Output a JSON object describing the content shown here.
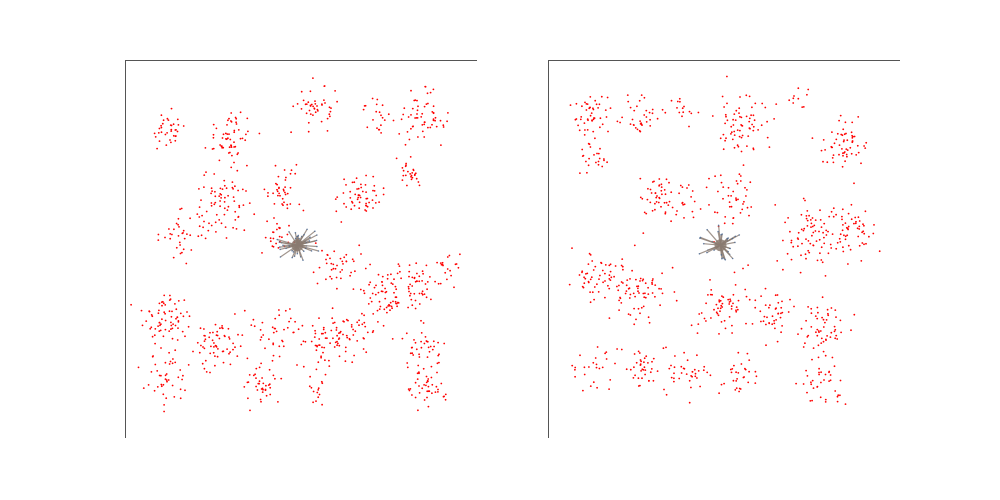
{
  "figure": {
    "background": "#ffffff",
    "point_color": "#ff0000",
    "edge_color": "#8a7a70",
    "center_node_color": "#3a5c8c",
    "axis_color": "#555555"
  },
  "chart_data": [
    {
      "type": "scatter",
      "title": "",
      "xlabel": "",
      "ylabel": "",
      "xlim": [
        0,
        1
      ],
      "ylim": [
        0,
        1
      ],
      "grid": false,
      "ticks": false,
      "visible_spines": [
        "top",
        "left"
      ],
      "hub": {
        "x": 0.49,
        "y": 0.51,
        "edge_count": 40
      },
      "clusters": [
        {
          "x": 0.12,
          "y": 0.81,
          "spread": 0.025,
          "count": 35
        },
        {
          "x": 0.3,
          "y": 0.8,
          "spread": 0.035,
          "count": 60
        },
        {
          "x": 0.55,
          "y": 0.87,
          "spread": 0.03,
          "count": 45
        },
        {
          "x": 0.71,
          "y": 0.87,
          "spread": 0.02,
          "count": 20
        },
        {
          "x": 0.84,
          "y": 0.84,
          "spread": 0.035,
          "count": 60
        },
        {
          "x": 0.81,
          "y": 0.7,
          "spread": 0.02,
          "count": 25
        },
        {
          "x": 0.28,
          "y": 0.61,
          "spread": 0.04,
          "count": 70
        },
        {
          "x": 0.45,
          "y": 0.66,
          "spread": 0.03,
          "count": 40
        },
        {
          "x": 0.67,
          "y": 0.64,
          "spread": 0.03,
          "count": 55
        },
        {
          "x": 0.16,
          "y": 0.54,
          "spread": 0.03,
          "count": 35
        },
        {
          "x": 0.43,
          "y": 0.53,
          "spread": 0.025,
          "count": 25
        },
        {
          "x": 0.6,
          "y": 0.46,
          "spread": 0.03,
          "count": 40
        },
        {
          "x": 0.74,
          "y": 0.38,
          "spread": 0.04,
          "count": 70
        },
        {
          "x": 0.84,
          "y": 0.4,
          "spread": 0.03,
          "count": 40
        },
        {
          "x": 0.91,
          "y": 0.45,
          "spread": 0.025,
          "count": 20
        },
        {
          "x": 0.12,
          "y": 0.32,
          "spread": 0.035,
          "count": 70
        },
        {
          "x": 0.27,
          "y": 0.25,
          "spread": 0.04,
          "count": 65
        },
        {
          "x": 0.43,
          "y": 0.29,
          "spread": 0.03,
          "count": 35
        },
        {
          "x": 0.57,
          "y": 0.25,
          "spread": 0.035,
          "count": 60
        },
        {
          "x": 0.66,
          "y": 0.29,
          "spread": 0.03,
          "count": 35
        },
        {
          "x": 0.85,
          "y": 0.23,
          "spread": 0.03,
          "count": 40
        },
        {
          "x": 0.12,
          "y": 0.16,
          "spread": 0.03,
          "count": 40
        },
        {
          "x": 0.39,
          "y": 0.14,
          "spread": 0.03,
          "count": 40
        },
        {
          "x": 0.55,
          "y": 0.12,
          "spread": 0.02,
          "count": 15
        },
        {
          "x": 0.86,
          "y": 0.13,
          "spread": 0.025,
          "count": 40
        }
      ]
    },
    {
      "type": "scatter",
      "title": "",
      "xlabel": "",
      "ylabel": "",
      "xlim": [
        0,
        1
      ],
      "ylim": [
        0,
        1
      ],
      "grid": false,
      "ticks": false,
      "visible_spines": [
        "top",
        "left"
      ],
      "hub": {
        "x": 0.49,
        "y": 0.51,
        "edge_count": 30
      },
      "clusters": [
        {
          "x": 0.12,
          "y": 0.86,
          "spread": 0.025,
          "count": 45
        },
        {
          "x": 0.27,
          "y": 0.85,
          "spread": 0.025,
          "count": 35
        },
        {
          "x": 0.38,
          "y": 0.87,
          "spread": 0.02,
          "count": 15
        },
        {
          "x": 0.55,
          "y": 0.83,
          "spread": 0.04,
          "count": 70
        },
        {
          "x": 0.71,
          "y": 0.9,
          "spread": 0.015,
          "count": 10
        },
        {
          "x": 0.84,
          "y": 0.78,
          "spread": 0.035,
          "count": 60
        },
        {
          "x": 0.12,
          "y": 0.75,
          "spread": 0.025,
          "count": 25
        },
        {
          "x": 0.33,
          "y": 0.64,
          "spread": 0.04,
          "count": 60
        },
        {
          "x": 0.52,
          "y": 0.63,
          "spread": 0.04,
          "count": 50
        },
        {
          "x": 0.75,
          "y": 0.53,
          "spread": 0.04,
          "count": 70
        },
        {
          "x": 0.86,
          "y": 0.55,
          "spread": 0.04,
          "count": 60
        },
        {
          "x": 0.14,
          "y": 0.43,
          "spread": 0.035,
          "count": 50
        },
        {
          "x": 0.25,
          "y": 0.38,
          "spread": 0.04,
          "count": 70
        },
        {
          "x": 0.5,
          "y": 0.36,
          "spread": 0.04,
          "count": 60
        },
        {
          "x": 0.63,
          "y": 0.33,
          "spread": 0.03,
          "count": 40
        },
        {
          "x": 0.79,
          "y": 0.28,
          "spread": 0.04,
          "count": 60
        },
        {
          "x": 0.12,
          "y": 0.18,
          "spread": 0.03,
          "count": 25
        },
        {
          "x": 0.27,
          "y": 0.18,
          "spread": 0.03,
          "count": 40
        },
        {
          "x": 0.4,
          "y": 0.17,
          "spread": 0.03,
          "count": 35
        },
        {
          "x": 0.54,
          "y": 0.17,
          "spread": 0.03,
          "count": 30
        },
        {
          "x": 0.77,
          "y": 0.14,
          "spread": 0.03,
          "count": 35
        }
      ]
    }
  ]
}
